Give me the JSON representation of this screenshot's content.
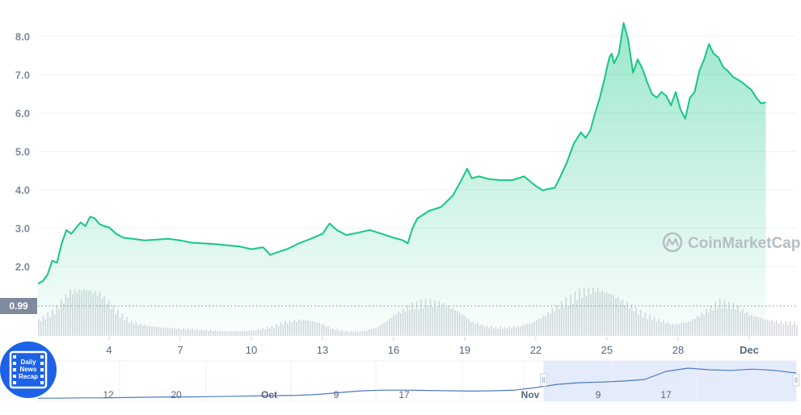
{
  "chart_data": {
    "type": "area",
    "title": "",
    "xlabel": "",
    "ylabel": "",
    "ylim": [
      1.5,
      8.5
    ],
    "yticks": [
      "8.0",
      "7.0",
      "6.0",
      "5.0",
      "4.0",
      "3.0",
      "2.0"
    ],
    "xticks": [
      "4",
      "7",
      "10",
      "13",
      "16",
      "19",
      "22",
      "25",
      "28",
      "Dec"
    ],
    "grid": true,
    "reference_line": {
      "label": "0.99",
      "value": 0.99
    },
    "series": [
      {
        "x": [
          1,
          1.2,
          1.4,
          1.6,
          1.8,
          2.0,
          2.2,
          2.4,
          2.6,
          2.8,
          3.0,
          3.2,
          3.4,
          3.6,
          3.8,
          4.0,
          4.3,
          4.6,
          5.0,
          5.5,
          6.0,
          6.5,
          7.0,
          7.5,
          8.0,
          8.5,
          9.0,
          9.5,
          10.0,
          10.5,
          10.8,
          11.0,
          11.5,
          12.0,
          12.5,
          13.0,
          13.3,
          13.6,
          14.0,
          14.5,
          15.0,
          15.5,
          16.0,
          16.4,
          16.6,
          16.8,
          17.0,
          17.5,
          18.0,
          18.5,
          18.9,
          19.1,
          19.3,
          19.6,
          20.0,
          20.5,
          21.0,
          21.5,
          22.0,
          22.3,
          22.5,
          22.8,
          23.0,
          23.3,
          23.6,
          23.9,
          24.1,
          24.3,
          24.5,
          24.7,
          24.9,
          25.1,
          25.2,
          25.3,
          25.5,
          25.7,
          25.9,
          26.1,
          26.3,
          26.5,
          26.7,
          26.9,
          27.1,
          27.3,
          27.5,
          27.7,
          27.9,
          28.1,
          28.3,
          28.5,
          28.7,
          28.9,
          29.1,
          29.3,
          29.5,
          29.7,
          29.9,
          30.1,
          30.3,
          30.5,
          30.7,
          30.9,
          31.1,
          31.3,
          31.5,
          31.7
        ],
        "values": [
          1.55,
          1.62,
          1.78,
          2.15,
          2.1,
          2.6,
          2.95,
          2.85,
          3.0,
          3.15,
          3.05,
          3.3,
          3.25,
          3.1,
          3.05,
          3.02,
          2.85,
          2.75,
          2.72,
          2.68,
          2.7,
          2.72,
          2.68,
          2.62,
          2.6,
          2.58,
          2.55,
          2.52,
          2.45,
          2.5,
          2.3,
          2.35,
          2.45,
          2.6,
          2.72,
          2.85,
          3.12,
          2.95,
          2.82,
          2.88,
          2.95,
          2.85,
          2.75,
          2.68,
          2.6,
          3.0,
          3.25,
          3.45,
          3.55,
          3.85,
          4.3,
          4.55,
          4.3,
          4.35,
          4.28,
          4.25,
          4.25,
          4.35,
          4.1,
          3.98,
          4.02,
          4.05,
          4.3,
          4.7,
          5.2,
          5.5,
          5.35,
          5.55,
          6.0,
          6.4,
          6.9,
          7.45,
          7.55,
          7.3,
          7.55,
          8.35,
          7.9,
          7.05,
          7.4,
          7.15,
          6.8,
          6.5,
          6.4,
          6.55,
          6.45,
          6.2,
          6.55,
          6.1,
          5.85,
          6.4,
          6.55,
          7.1,
          7.4,
          7.8,
          7.55,
          7.45,
          7.2,
          7.1,
          6.95,
          6.88,
          6.8,
          6.7,
          6.6,
          6.4,
          6.25,
          6.28
        ],
        "color": "#16c784"
      }
    ],
    "volume_profile": [
      0.35,
      0.55,
      0.95,
      1.0,
      0.9,
      0.55,
      0.3,
      0.22,
      0.18,
      0.16,
      0.15,
      0.12,
      0.1,
      0.1,
      0.12,
      0.2,
      0.3,
      0.35,
      0.3,
      0.15,
      0.1,
      0.1,
      0.2,
      0.45,
      0.65,
      0.75,
      0.7,
      0.55,
      0.3,
      0.2,
      0.18,
      0.2,
      0.3,
      0.5,
      0.75,
      0.95,
      1.0,
      0.9,
      0.7,
      0.5,
      0.35,
      0.25,
      0.3,
      0.5,
      0.75,
      0.65,
      0.45,
      0.35,
      0.3,
      0.28
    ],
    "navigator": {
      "ticks": [
        "12",
        "20",
        "Oct",
        "9",
        "17",
        "Nov",
        "9",
        "17"
      ],
      "bold_ticks": [
        "Oct",
        "Nov"
      ],
      "line_color": "#4e79c7",
      "fill_color": "#e4ebfb",
      "selection_range": [
        0.6667,
        1.0
      ]
    },
    "watermark": "CoinMarketCap",
    "colors": {
      "line": "#16c784",
      "area_top": "#16c784",
      "grid": "#eff2f5",
      "volume": "#d9dde3",
      "badge": "#808a9d"
    }
  },
  "overlay": {
    "logo_lines": [
      "Daily",
      "News",
      "Recap"
    ],
    "logo_color": "#1d62e6"
  }
}
